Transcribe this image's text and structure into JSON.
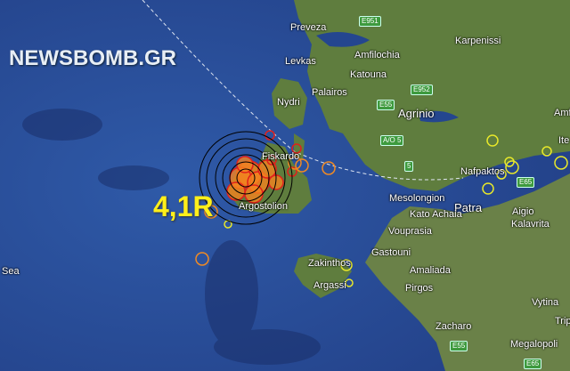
{
  "watermark": "NEWSBOMB.GR",
  "magnitude_label": "4,1R",
  "colors": {
    "sea": "#2a4f9c",
    "land": "#5f7d3e",
    "magnitude": "#ffef1a",
    "quake_red": "#e0201c",
    "quake_orange": "#f08a24",
    "quake_yellow": "#e8e82a"
  },
  "places": {
    "preveza": "Preveza",
    "levkas": "Levkas",
    "amfilochia": "Amfilochia",
    "katouna": "Katouna",
    "karpenissi": "Karpenissi",
    "palairos": "Palairos",
    "nydri": "Nydri",
    "agrinio": "Agrinio",
    "fiskardo": "Fiskardo",
    "nafpaktos": "Nafpaktos",
    "mesolongion": "Mesolongion",
    "patra": "Patra",
    "aigio": "Aigio",
    "argostolion": "Argostolion",
    "kato_achaia": "Kato Achaia",
    "kalavrita": "Kalavrita",
    "vouprasia": "Vouprasia",
    "gastouni": "Gastouni",
    "amaliada": "Amaliada",
    "zakinthos": "Zakinthos",
    "argassi": "Argassi",
    "pirgos": "Pirgos",
    "vytina": "Vytina",
    "zacharo": "Zacharo",
    "megalopoli": "Megalopoli",
    "sea": "Sea",
    "amf": "Amf",
    "ite": "Ite",
    "trip": "Trip"
  },
  "roads": {
    "e951": "E951",
    "e952": "E952",
    "e55_north": "E55",
    "ao5": "A/O 5",
    "r5": "5",
    "e65_north": "E65",
    "e55_south": "E55",
    "e65_south": "E65"
  }
}
